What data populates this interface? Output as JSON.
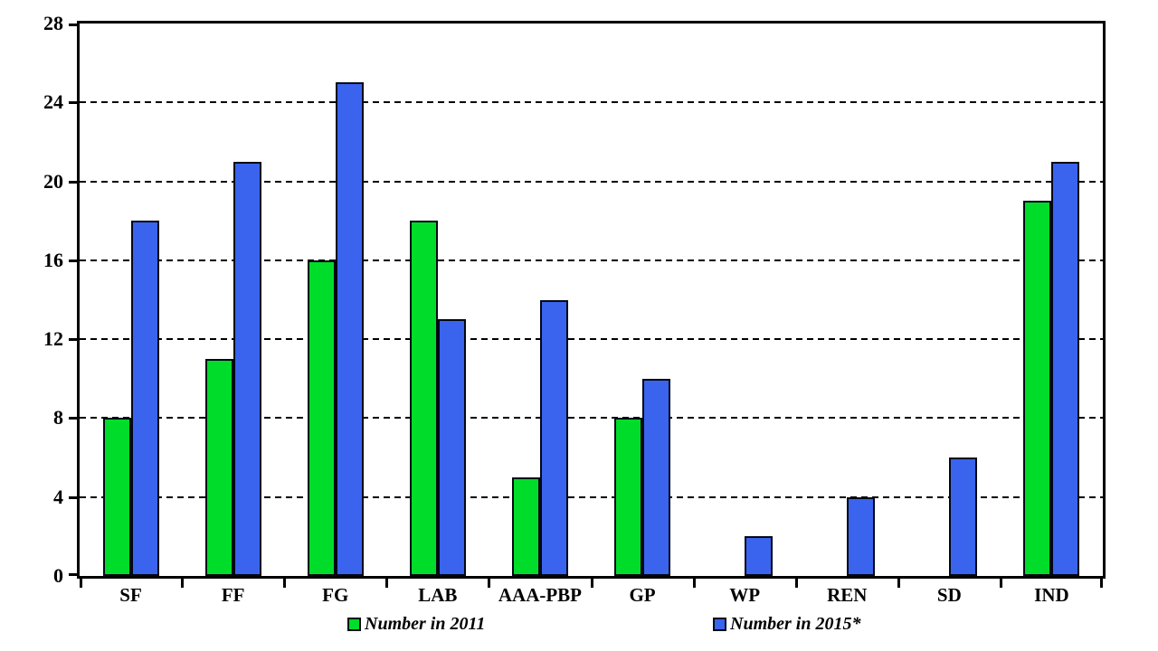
{
  "chart_data": {
    "type": "bar",
    "title": "",
    "xlabel": "",
    "ylabel": "",
    "categories": [
      "SF",
      "FF",
      "FG",
      "LAB",
      "AAA-PBP",
      "GP",
      "WP",
      "REN",
      "SD",
      "IND"
    ],
    "series": [
      {
        "name": "Number in 2011",
        "color": "#00DC2A",
        "values": [
          8,
          11,
          16,
          18,
          5,
          8,
          0,
          0,
          0,
          19
        ]
      },
      {
        "name": "Number in 2015*",
        "color": "#3A64EE",
        "values": [
          18,
          21,
          25,
          13,
          14,
          10,
          2,
          4,
          6,
          21
        ]
      }
    ],
    "ylim": [
      0,
      28
    ],
    "yticks": [
      0,
      4,
      8,
      12,
      16,
      20,
      24,
      28
    ],
    "grid": "horizontal-dashed",
    "legend_position": "bottom"
  },
  "colors": {
    "background": "#ffffff",
    "axis": "#000000",
    "grid": "#000000",
    "bar_border": "#000814",
    "text": "#000000",
    "series_2011": "#00DC2A",
    "series_2015": "#3A64EE"
  }
}
